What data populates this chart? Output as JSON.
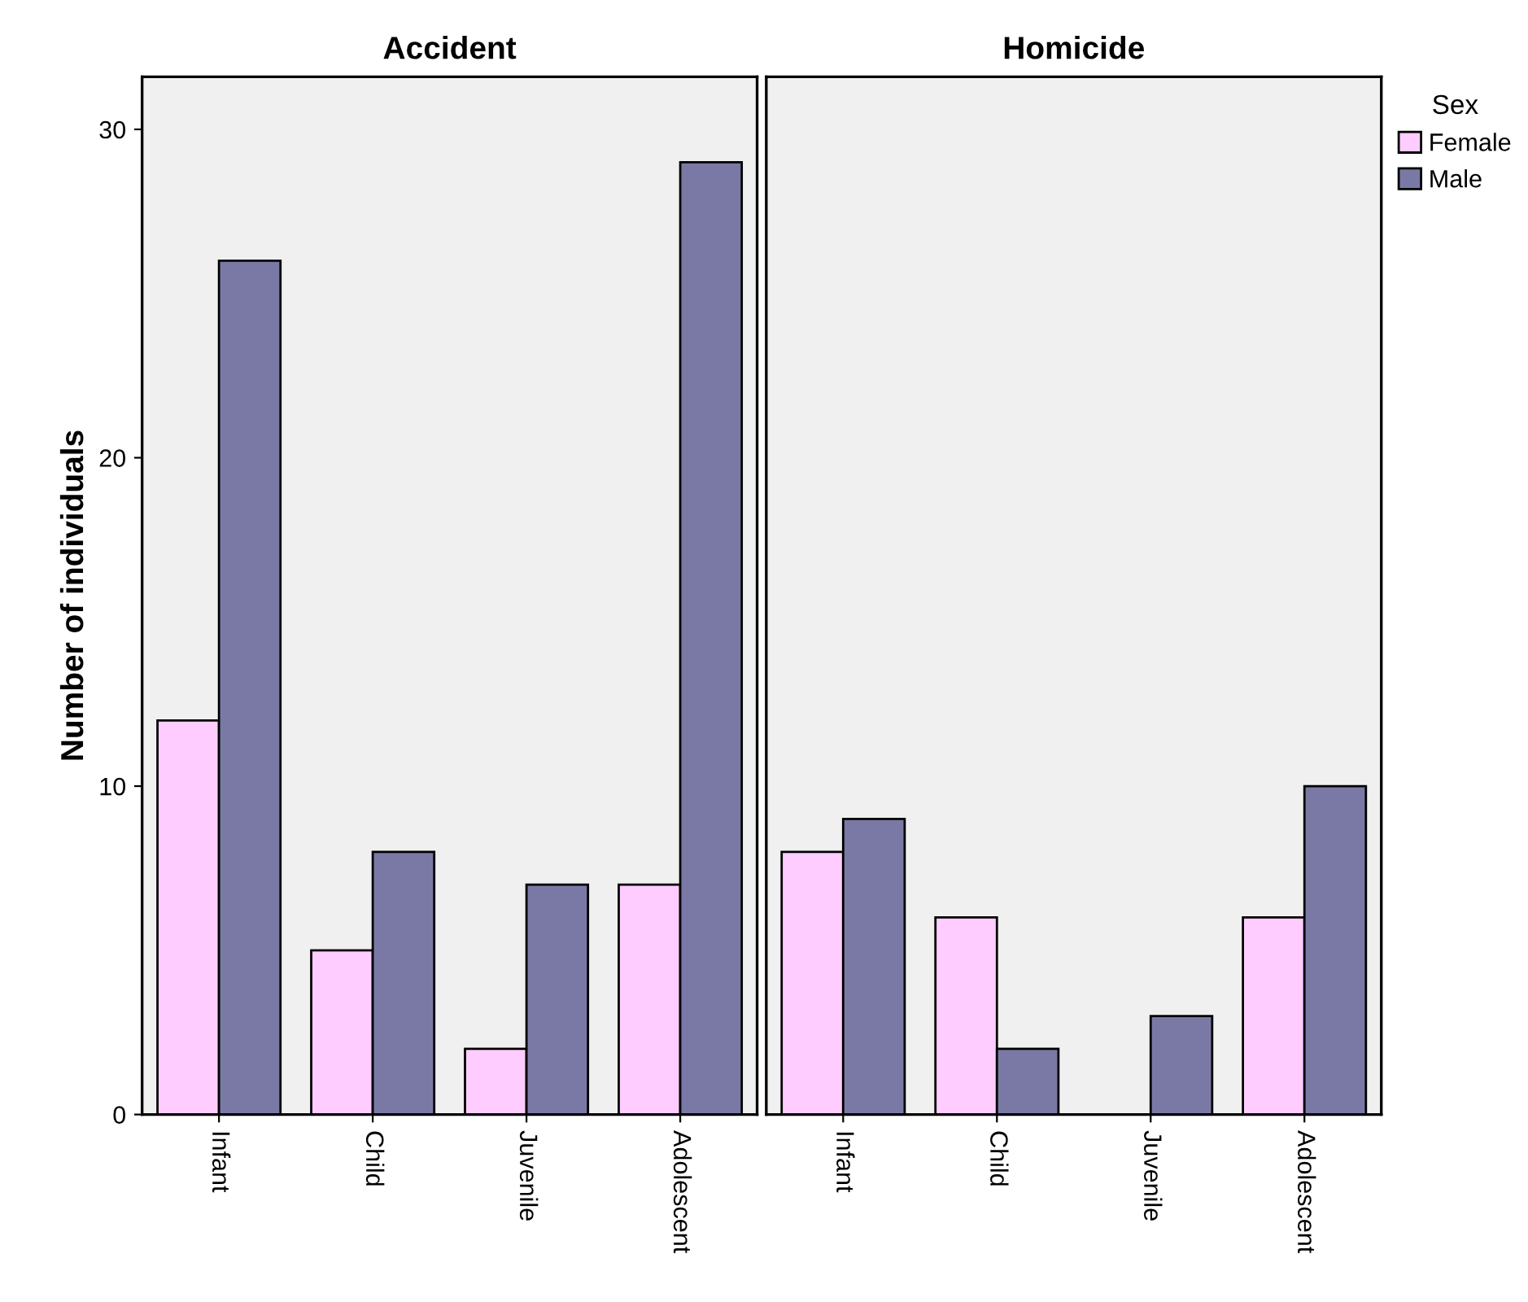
{
  "chart_data": [
    {
      "type": "bar",
      "title": "Accident",
      "ylabel": "Number of individuals",
      "categories": [
        "Infant",
        "Child",
        "Juvenile",
        "Adolescent"
      ],
      "series": [
        {
          "name": "Female",
          "color": "#ffccff",
          "values": [
            12,
            5,
            2,
            7
          ]
        },
        {
          "name": "Male",
          "color": "#7a79a6",
          "values": [
            26,
            8,
            7,
            29
          ]
        }
      ],
      "ylim": [
        0,
        31.6
      ],
      "yticks": [
        0,
        10,
        20,
        30
      ],
      "grid": false,
      "legend": "top right",
      "legend_title": "Sex"
    },
    {
      "type": "bar",
      "title": "Homicide",
      "categories": [
        "Infant",
        "Child",
        "Juvenile",
        "Adolescent"
      ],
      "series": [
        {
          "color": "#ffccff",
          "values": [
            8,
            6,
            null,
            6
          ]
        },
        {
          "color": "#7a79a6",
          "values": [
            9,
            2,
            3,
            10
          ]
        }
      ],
      "ylim": [
        0,
        31.6
      ],
      "yticks": [
        0,
        10,
        20,
        30
      ],
      "tick_labels": "x",
      "grid": false
    }
  ]
}
